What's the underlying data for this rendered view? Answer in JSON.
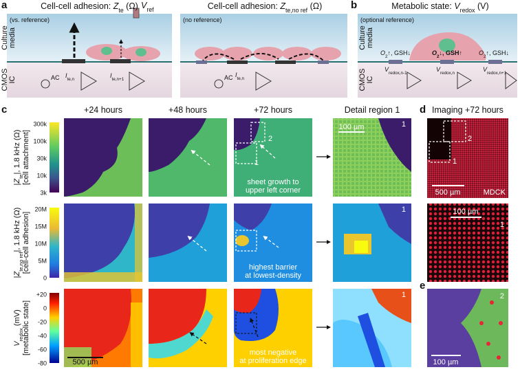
{
  "panel_a": {
    "label": "a",
    "left": {
      "title": {
        "pre": "Cell-cell adhesion: ",
        "var": "Z",
        "sub": "te",
        "post": " (Ω)"
      },
      "vref": {
        "var": "V",
        "sub": "ref"
      },
      "note": "(vs. reference)",
      "media": [
        "Culture",
        "media"
      ],
      "ic": [
        "CMOS",
        "IC"
      ],
      "ac": "AC",
      "i1": {
        "var": "I",
        "sub": "te,n"
      },
      "i2": {
        "var": "I",
        "sub": "te,n+1"
      }
    },
    "right": {
      "title": {
        "pre": "Cell-cell adhesion: ",
        "var": "Z",
        "sub": "te,no ref",
        "post": " (Ω)"
      },
      "note": "(no reference)",
      "ac": "AC",
      "i1": {
        "var": "I",
        "sub": "te,n"
      }
    }
  },
  "panel_b": {
    "label": "b",
    "title": {
      "pre": "Metabolic state: ",
      "var": "V",
      "sub": "redox",
      "post": " (V)"
    },
    "note": "(optional reference)",
    "media": [
      "Culture",
      "media"
    ],
    "ic": [
      "CMOS",
      "IC"
    ],
    "conditions": [
      {
        "var": "O",
        "sub": "2",
        "post": "↑, GSH↓"
      },
      {
        "var": "O",
        "sub": "2",
        "post": "↓, GSH↑"
      },
      {
        "var": "O",
        "sub": "2",
        "post": "↑, GSH↓"
      }
    ],
    "electrodes": [
      {
        "var": "V",
        "sub": "redox,n-1"
      },
      {
        "var": "V",
        "sub": "redox,n"
      },
      {
        "var": "V",
        "sub": "redox,n+1"
      }
    ]
  },
  "panel_c": {
    "label": "c",
    "columns": [
      "+24 hours",
      "+48 hours",
      "+72 hours",
      "Detail region 1"
    ],
    "rows": [
      {
        "label": {
          "pre": "|",
          "var": "Z",
          "sub": "te",
          "post": "|, 1.8 kHz (Ω)"
        },
        "label2": "[cell attachment]",
        "colorbar": [
          "300k",
          "100k",
          "30k",
          "10k",
          "3k"
        ],
        "annotation": [
          "sheet growth to",
          "upper left corner"
        ],
        "regions": [
          "2",
          "1"
        ],
        "detail_region": "1",
        "detail_scale": "100 µm"
      },
      {
        "label": {
          "pre": "|",
          "var": "Z",
          "sub": "te,no ref",
          "post": "|, 1.8 kHz (Ω)"
        },
        "label2": "[cell-cell adhesion]",
        "colorbar": [
          "20M",
          "15M",
          "10M",
          "5M",
          "0"
        ],
        "annotation": [
          "highest barrier",
          "at lowest-density"
        ],
        "detail_region": "1"
      },
      {
        "label": {
          "var": "V",
          "sub": "redox",
          "post": " (mV)"
        },
        "label2": "[metabolic state]",
        "colorbar": [
          "+20",
          "0",
          "-20",
          "-40",
          "-60",
          "-80"
        ],
        "annotation": [
          "most negative",
          "at proliferation edge"
        ],
        "detail_region": "1",
        "scale": "500 µm"
      }
    ]
  },
  "panel_d": {
    "label": "d",
    "title": "Imaging +72 hours",
    "regions": [
      "2",
      "1"
    ],
    "scale": "500 µm",
    "cell": "MDCK",
    "middle_scale": "100 µm",
    "middle_region": "1"
  },
  "panel_e": {
    "label": "e",
    "scale": "100 µm",
    "region": "2"
  }
}
